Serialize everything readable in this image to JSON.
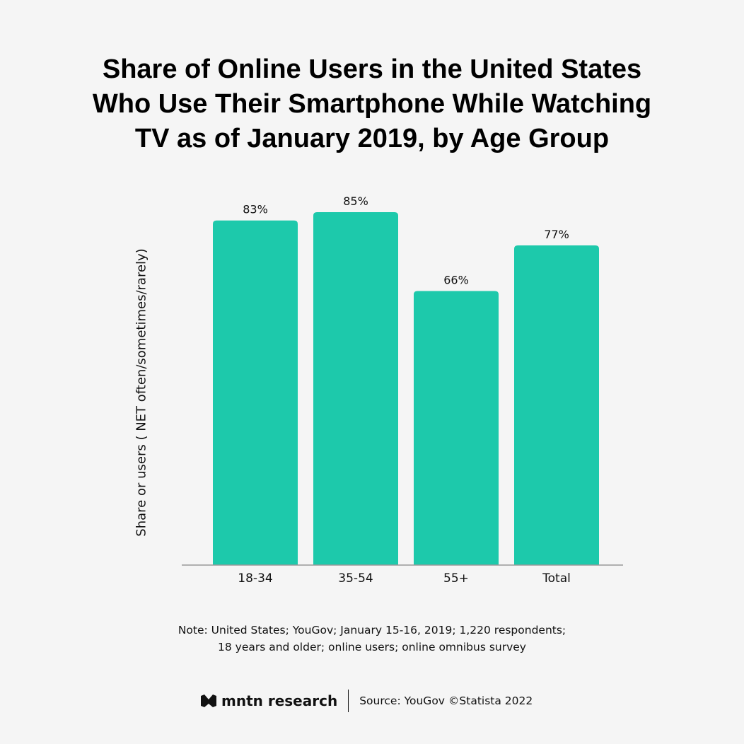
{
  "title_lines": [
    "Share of Online Users in the United States",
    "Who Use Their Smartphone While Watching",
    "TV as of January 2019, by Age Group"
  ],
  "chart_data": {
    "type": "bar",
    "title": "Share of Online Users in the United States Who Use Their Smartphone While Watching TV as of January 2019, by Age Group",
    "categories": [
      "18-34",
      "35-54",
      "55+",
      "Total"
    ],
    "values": [
      83,
      85,
      66,
      77
    ],
    "data_labels": [
      "83%",
      "85%",
      "66%",
      "77%"
    ],
    "xlabel": "",
    "ylabel": "Share or users ( NET often/sometimes/rarely)",
    "unit": "%",
    "grid": false,
    "bar_color": "#1dc9ab"
  },
  "note_lines": [
    "Note: United States; YouGov; January 15-16, 2019; 1,220 respondents;",
    "18 years and older; online users; online omnibus survey"
  ],
  "footer": {
    "logo_text": "mntn research",
    "source": "Source: YouGov ©Statista 2022"
  }
}
